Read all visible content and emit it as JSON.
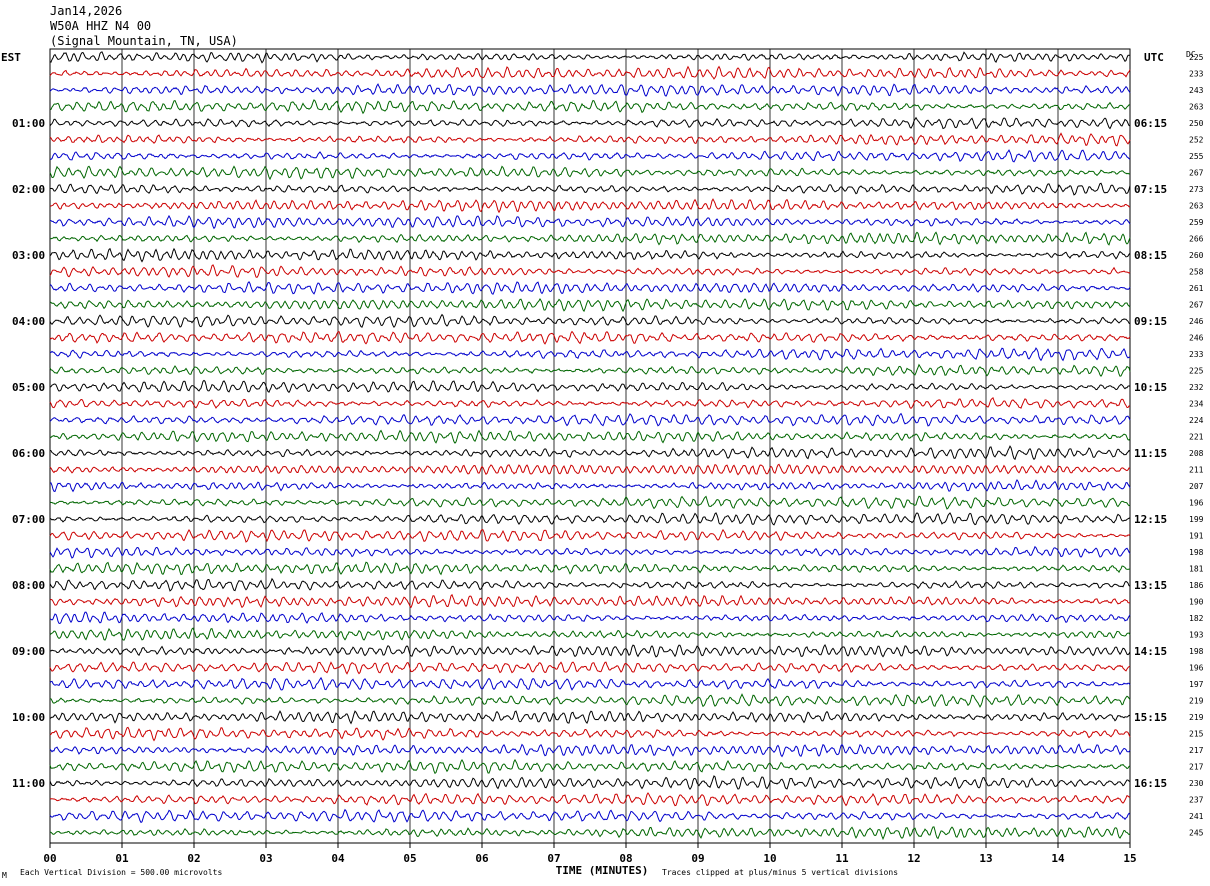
{
  "header": {
    "date": "Jan14,2026",
    "station": "W50A HHZ N4 00",
    "location": "(Signal Mountain, TN, USA)"
  },
  "chart_data": {
    "type": "line",
    "title": "W50A HHZ N4 00",
    "left_timezone": "EST",
    "right_timezone": "UTC",
    "dc_header": "DC",
    "xlabel": "TIME (MINUTES)",
    "xlim": [
      0,
      15
    ],
    "x_ticks": [
      "00",
      "01",
      "02",
      "03",
      "04",
      "05",
      "06",
      "07",
      "08",
      "09",
      "10",
      "11",
      "12",
      "13",
      "14",
      "15"
    ],
    "left_hour_labels": [
      "01:00",
      "02:00",
      "03:00",
      "04:00",
      "05:00",
      "06:00",
      "07:00",
      "08:00",
      "09:00",
      "10:00",
      "11:00"
    ],
    "right_hour_labels": [
      "06:15",
      "07:15",
      "08:15",
      "09:15",
      "10:15",
      "11:15",
      "12:15",
      "13:15",
      "14:15",
      "15:15",
      "16:15"
    ],
    "traces_per_hour": 4,
    "trace_count": 48,
    "trace_colors": [
      "#000000",
      "#cc0000",
      "#0000cc",
      "#006600"
    ],
    "dc_offsets": [
      225,
      233,
      243,
      263,
      250,
      252,
      255,
      267,
      273,
      263,
      259,
      266,
      260,
      258,
      261,
      267,
      246,
      246,
      233,
      225,
      232,
      234,
      224,
      221,
      208,
      211,
      207,
      196,
      199,
      191,
      198,
      181,
      186,
      190,
      182,
      193,
      198,
      196,
      197,
      219,
      219,
      215,
      217,
      217,
      230,
      237,
      241,
      245
    ],
    "grid": true,
    "footer_left": "Each Vertical Division =  500.00 microvolts",
    "footer_right": "Traces clipped at plus/minus 5 vertical divisions",
    "corner_mark": "M"
  }
}
